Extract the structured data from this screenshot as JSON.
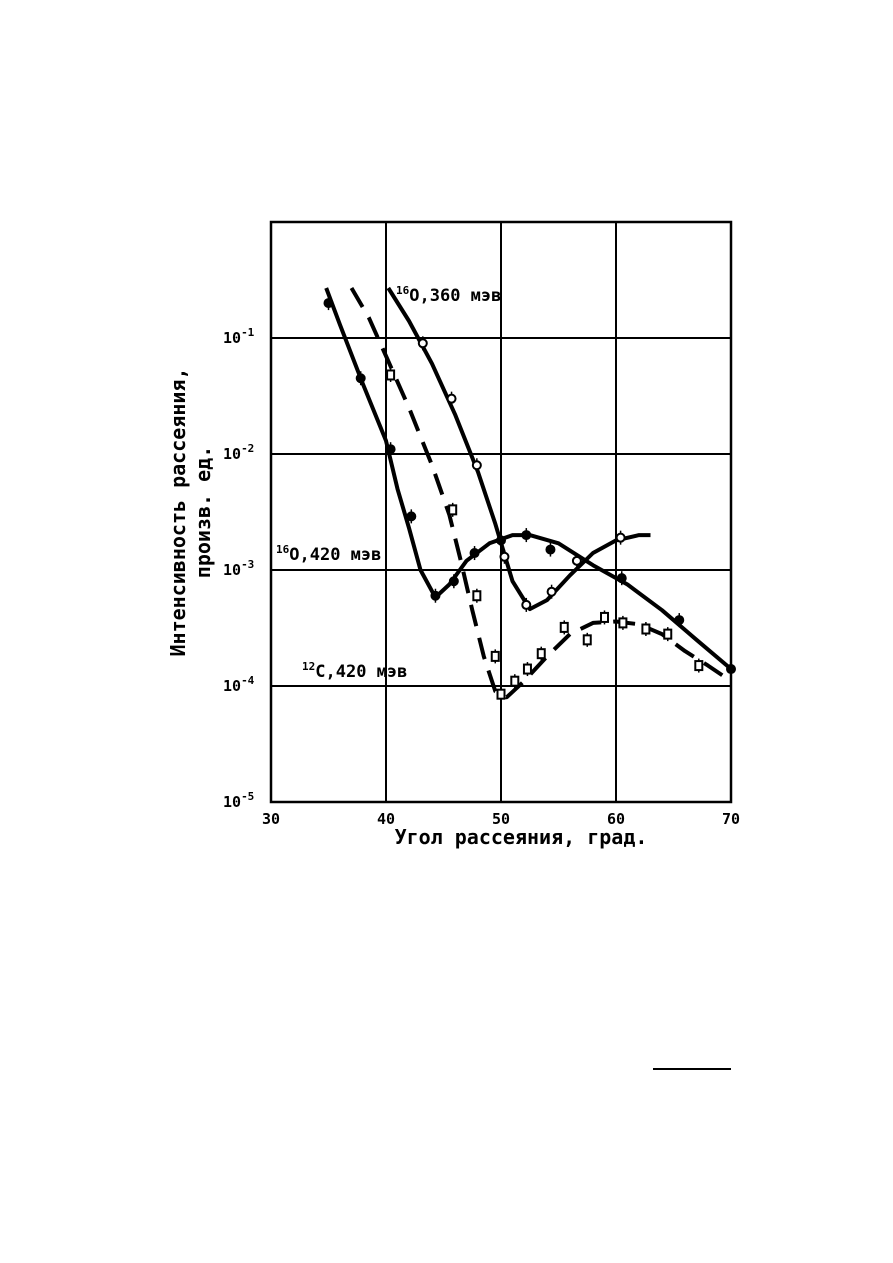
{
  "chart_data": {
    "type": "line",
    "xlabel": "Угол рассеяния, град.",
    "ylabel": [
      "Интенсивность рассеяния,",
      "произв. ед."
    ],
    "ylog": true,
    "grid": true,
    "xlim": [
      30,
      70
    ],
    "xticks": [
      30,
      40,
      50,
      60,
      70
    ],
    "ylim": [
      1e-05,
      1
    ],
    "yticks": [
      {
        "value": 0.1,
        "label": "10",
        "exponent": "-1"
      },
      {
        "value": 0.01,
        "label": "10",
        "exponent": "-2"
      },
      {
        "value": 0.001,
        "label": "10",
        "exponent": "-3"
      },
      {
        "value": 0.0001,
        "label": "10",
        "exponent": "-4"
      },
      {
        "value": 1e-05,
        "label": "10",
        "exponent": "-5"
      }
    ],
    "series": [
      {
        "isotope": "16",
        "name": "O,360 мэв",
        "color": "#000000",
        "dash": false,
        "marker": "open-circle",
        "curve": {
          "x": [
            40.2,
            42,
            44,
            46,
            48,
            49.5,
            51,
            52.5,
            54,
            56,
            58,
            60,
            62,
            63
          ],
          "y": [
            0.27,
            0.14,
            0.06,
            0.022,
            0.007,
            0.0025,
            0.0008,
            0.00046,
            0.00055,
            0.0009,
            0.0014,
            0.0018,
            0.002,
            0.002
          ]
        },
        "points": {
          "x": [
            43.2,
            45.7,
            47.9,
            50.3,
            52.2,
            54.4,
            56.6,
            60.4
          ],
          "y": [
            0.09,
            0.03,
            0.008,
            0.0013,
            0.0005,
            0.00065,
            0.0012,
            0.0019
          ]
        }
      },
      {
        "isotope": "16",
        "name": "O,420 мэв",
        "color": "#000000",
        "dash": false,
        "marker": "filled-circle",
        "curve": {
          "x": [
            34.8,
            36,
            38,
            40,
            41,
            42,
            43,
            44.3,
            45.5,
            47,
            49,
            51,
            52.5,
            55,
            58,
            61,
            64,
            67,
            70
          ],
          "y": [
            0.27,
            0.13,
            0.04,
            0.013,
            0.005,
            0.0023,
            0.001,
            0.00058,
            0.00075,
            0.0012,
            0.0017,
            0.002,
            0.002,
            0.0017,
            0.0011,
            0.00075,
            0.00045,
            0.00025,
            0.00014
          ]
        },
        "points": {
          "x": [
            35,
            37.8,
            40.4,
            42.2,
            44.3,
            45.9,
            47.7,
            50,
            52.2,
            54.3,
            60.5,
            65.5,
            70
          ],
          "y": [
            0.2,
            0.045,
            0.011,
            0.0029,
            0.0006,
            0.0008,
            0.0014,
            0.0018,
            0.002,
            0.0015,
            0.00085,
            0.00037,
            0.00014
          ]
        }
      },
      {
        "isotope": "12",
        "name": "C,420 мэв",
        "color": "#000000",
        "dash": true,
        "marker": "open-square",
        "curve": {
          "x": [
            37,
            38.5,
            40,
            42,
            44,
            45.5,
            46.5,
            47.5,
            48.5,
            49.5,
            50.5,
            52,
            54,
            56,
            58,
            60,
            62,
            64,
            66,
            68,
            70
          ],
          "y": [
            0.27,
            0.15,
            0.07,
            0.025,
            0.008,
            0.003,
            0.0012,
            0.00045,
            0.00018,
            9e-05,
            8e-05,
            0.00011,
            0.00018,
            0.00028,
            0.00035,
            0.00036,
            0.00034,
            0.00028,
            0.0002,
            0.00015,
            0.00011
          ]
        },
        "points": {
          "x": [
            40.4,
            45.8,
            47.9,
            49.5,
            50,
            51.2,
            52.3,
            53.5,
            55.5,
            57.5,
            59,
            60.6,
            62.6,
            64.5,
            67.2
          ],
          "y": [
            0.048,
            0.0033,
            0.0006,
            0.00018,
            8.5e-05,
            0.00011,
            0.00014,
            0.00019,
            0.00032,
            0.00025,
            0.00039,
            0.00035,
            0.00031,
            0.00028,
            0.00015
          ]
        }
      }
    ]
  }
}
